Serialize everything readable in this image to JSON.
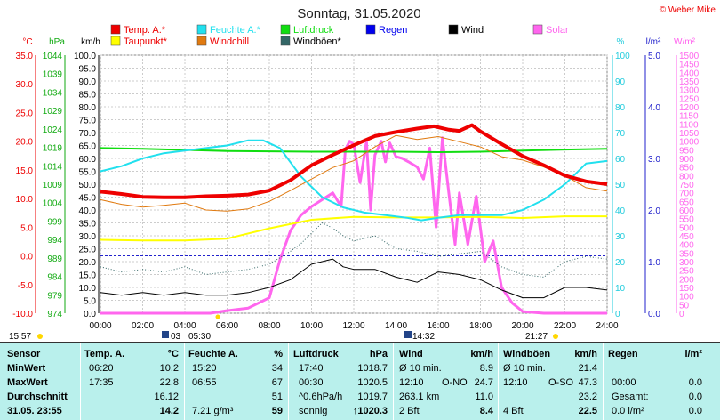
{
  "page": {
    "title": "Sonntag, 31.05.2020",
    "copyright": "© Weber Mike"
  },
  "colors": {
    "temp": "#ee0000",
    "dew": "#ffff00",
    "humidity": "#22e0ee",
    "windchill": "#e07a10",
    "pressure": "#11dd11",
    "gust": "#336666",
    "rain": "#0000ee",
    "wind": "#000000",
    "solar": "#ff66ee",
    "table_bg": "#b9f0ec"
  },
  "legend": [
    {
      "label": "Temp. A.*",
      "color": "#ee0000",
      "label_color": "#ee0000"
    },
    {
      "label": "Taupunkt*",
      "color": "#ffff00",
      "label_color": "#ee0000"
    },
    {
      "label": "Feuchte A.*",
      "color": "#22e0ee",
      "label_color": "#22e0ee"
    },
    {
      "label": "Windchill",
      "color": "#e07a10",
      "label_color": "#ee0000"
    },
    {
      "label": "Luftdruck",
      "color": "#11dd11",
      "label_color": "#11dd11"
    },
    {
      "label": "Windböen*",
      "color": "#336666",
      "label_color": "#000000"
    },
    {
      "label": "Regen",
      "color": "#0000ee",
      "label_color": "#0000ee"
    },
    {
      "label": "Wind",
      "color": "#000000",
      "label_color": "#000000"
    },
    {
      "label": "Solar",
      "color": "#ff66ee",
      "label_color": "#ff66ee"
    }
  ],
  "chart_data": {
    "type": "line",
    "xlim": [
      "00:00",
      "24:00"
    ],
    "x_ticks": [
      "00:00",
      "02:00",
      "04:00",
      "06:00",
      "08:00",
      "10:00",
      "12:00",
      "14:00",
      "16:00",
      "18:00",
      "20:00",
      "22:00",
      "24:00"
    ],
    "axes": [
      {
        "unit": "°C",
        "range": [
          -10,
          35
        ],
        "ticks": [
          "35.0",
          "30.0",
          "25.0",
          "20.0",
          "15.0",
          "10.0",
          "5.0",
          "0.0",
          "-5.0",
          "-10.0"
        ],
        "color": "#ee0000"
      },
      {
        "unit": "hPa",
        "range": [
          974,
          1044
        ],
        "ticks": [
          "1044",
          "1039",
          "1034",
          "1029",
          "1024",
          "1019",
          "1014",
          "1009",
          "1004",
          "999",
          "994",
          "989",
          "984",
          "979",
          "974"
        ],
        "color": "#11aa11"
      },
      {
        "unit": "km/h",
        "range": [
          0,
          100
        ],
        "ticks": [
          "100.0",
          "95.0",
          "90.0",
          "85.0",
          "80.0",
          "75.0",
          "70.0",
          "65.0",
          "60.0",
          "55.0",
          "50.0",
          "45.0",
          "40.0",
          "35.0",
          "30.0",
          "25.0",
          "20.0",
          "15.0",
          "10.0",
          "5.0",
          "0.0"
        ],
        "color": "#000000"
      },
      {
        "unit": "%",
        "range": [
          0,
          100
        ],
        "ticks": [
          "100",
          "90",
          "80",
          "70",
          "60",
          "50",
          "40",
          "30",
          "20",
          "10",
          "0"
        ],
        "color": "#22ccdd"
      },
      {
        "unit": "l/m²",
        "range": [
          0,
          5
        ],
        "ticks": [
          "5.0",
          "4.0",
          "3.0",
          "2.0",
          "1.0",
          "0.0"
        ],
        "color": "#2222cc"
      },
      {
        "unit": "W/m²",
        "range": [
          0,
          1500
        ],
        "ticks": [
          "1500",
          "1450",
          "1400",
          "1350",
          "1300",
          "1250",
          "1200",
          "1150",
          "1100",
          "1050",
          "1000",
          "950",
          "900",
          "850",
          "800",
          "750",
          "700",
          "650",
          "600",
          "550",
          "500",
          "450",
          "400",
          "350",
          "300",
          "250",
          "200",
          "150",
          "100",
          "50",
          "0"
        ],
        "color": "#ff66ee"
      }
    ],
    "series": [
      {
        "name": "Temp. A.*",
        "axis": "°C",
        "x": [
          0,
          1,
          2,
          3,
          4,
          5,
          6,
          7,
          8,
          9,
          10,
          11,
          12,
          13,
          14,
          15,
          15.8,
          16.5,
          17,
          17.6,
          18,
          19,
          20,
          21,
          22,
          23,
          24
        ],
        "y": [
          11.2,
          10.8,
          10.3,
          10.2,
          10.2,
          10.4,
          10.5,
          10.7,
          11.4,
          13.2,
          15.8,
          17.6,
          19.3,
          20.9,
          21.6,
          22.2,
          22.6,
          22.0,
          21.8,
          22.8,
          21.7,
          19.5,
          17.4,
          15.8,
          14.0,
          13.0,
          12.5
        ]
      },
      {
        "name": "Taupunkt*",
        "axis": "°C",
        "x": [
          0,
          2,
          4,
          6,
          8,
          10,
          12,
          14,
          16,
          18,
          20,
          22,
          24
        ],
        "y": [
          2.8,
          2.7,
          2.7,
          3.0,
          4.8,
          6.3,
          6.8,
          6.7,
          6.7,
          6.8,
          6.6,
          6.9,
          6.9
        ]
      },
      {
        "name": "Feuchte A.*",
        "axis": "%",
        "x": [
          0,
          1,
          2,
          3,
          4,
          5,
          6,
          7,
          7.7,
          8.5,
          9.5,
          10.5,
          11.5,
          12.5,
          13.5,
          14.5,
          15.2,
          16,
          17,
          18,
          19,
          20,
          21,
          22,
          23,
          24
        ],
        "y": [
          55,
          57,
          60,
          62,
          63,
          64,
          65,
          67,
          67,
          64,
          53,
          45,
          41,
          39,
          38,
          37,
          36,
          37,
          38,
          38,
          38,
          40,
          44,
          50,
          58,
          59
        ]
      },
      {
        "name": "Windchill",
        "axis": "°C",
        "x": [
          0,
          1,
          2,
          3,
          4,
          5,
          6,
          7,
          8,
          9,
          10,
          11,
          12,
          13,
          14,
          15,
          16,
          17,
          18,
          19,
          20,
          21,
          22,
          23,
          24
        ],
        "y": [
          9.8,
          9.0,
          8.5,
          8.8,
          9.2,
          8.0,
          7.8,
          8.2,
          9.5,
          11.4,
          13.4,
          15.4,
          16.6,
          19.0,
          21.0,
          20.3,
          20.8,
          19.9,
          19.0,
          17.3,
          16.7,
          15.5,
          14.0,
          11.9,
          11.3
        ]
      },
      {
        "name": "Luftdruck",
        "axis": "hPa",
        "x": [
          0,
          2,
          4,
          6,
          8,
          10,
          12,
          14,
          16,
          18,
          20,
          22,
          24
        ],
        "y": [
          1018.8,
          1018.6,
          1018.3,
          1018.0,
          1017.9,
          1017.8,
          1017.8,
          1017.8,
          1017.7,
          1017.8,
          1018.1,
          1018.4,
          1018.6
        ]
      },
      {
        "name": "Windböen*",
        "axis": "km/h",
        "x": [
          0,
          1,
          2,
          3,
          4,
          5,
          6,
          7,
          8,
          9,
          9.5,
          10,
          10.5,
          11,
          11.5,
          12,
          13,
          14,
          15,
          16,
          17,
          18,
          19,
          20,
          21,
          22,
          23,
          24
        ],
        "y": [
          18,
          16,
          17,
          16,
          18,
          15,
          16,
          17,
          19,
          24,
          27,
          31,
          35,
          33,
          30,
          28,
          30,
          25,
          24,
          22,
          23,
          24,
          18,
          15,
          14,
          20,
          22,
          21
        ]
      },
      {
        "name": "Wind",
        "axis": "km/h",
        "x": [
          0,
          1,
          2,
          3,
          4,
          5,
          6,
          7,
          8,
          9,
          9.5,
          10,
          10.5,
          11,
          11.5,
          12,
          13,
          14,
          15,
          16,
          17,
          18,
          19,
          20,
          21,
          22,
          23,
          24
        ],
        "y": [
          8,
          7,
          8,
          7,
          8,
          7,
          7,
          8,
          10,
          13,
          16,
          19,
          20,
          21,
          18,
          17,
          17,
          14,
          12,
          16,
          15,
          13,
          9,
          6,
          6,
          10,
          10,
          9
        ]
      },
      {
        "name": "Solar",
        "axis": "W/m²",
        "x": [
          0,
          5.2,
          6,
          7,
          8,
          8.5,
          9,
          9.5,
          10,
          10.5,
          11,
          11.4,
          11.6,
          11.8,
          12,
          12.3,
          12.6,
          12.8,
          13,
          13.3,
          13.5,
          13.7,
          14,
          14.3,
          14.6,
          15,
          15.3,
          15.6,
          15.9,
          16.2,
          16.5,
          16.8,
          17,
          17.4,
          17.8,
          18.2,
          18.6,
          19,
          19.5,
          20,
          21,
          24
        ],
        "y": [
          0,
          0,
          15,
          30,
          90,
          310,
          480,
          570,
          620,
          660,
          700,
          620,
          950,
          1000,
          980,
          760,
          1000,
          600,
          920,
          1000,
          880,
          990,
          910,
          900,
          880,
          850,
          780,
          960,
          500,
          1020,
          700,
          400,
          700,
          400,
          680,
          300,
          420,
          150,
          60,
          10,
          0,
          0
        ]
      }
    ]
  },
  "footer": {
    "time_left": "15:57",
    "sunrise": "05:30",
    "moon_label": "03",
    "noon": "14:32",
    "sunset": "21:27"
  },
  "table": {
    "headers": {
      "sensor": "Sensor",
      "temp": "Temp. A.",
      "temp_unit": "°C",
      "hum": "Feuchte A.",
      "hum_unit": "%",
      "press": "Luftdruck",
      "press_unit": "hPa",
      "wind": "Wind",
      "wind_unit": "km/h",
      "gust": "Windböen",
      "gust_unit": "km/h",
      "rain": "Regen",
      "rain_unit": "l/m²"
    },
    "rows": [
      {
        "label": "MinWert",
        "temp_time": "06:20",
        "temp_val": "10.2",
        "hum_time": "15:20",
        "hum_val": "34",
        "press_time": "17:40",
        "press_val": "1018.7",
        "wind_time": "Ø 10 min.",
        "wind_val": "8.9",
        "gust_time": "Ø 10 min.",
        "gust_val": "21.4",
        "rain_time": "",
        "rain_val": ""
      },
      {
        "label": "MaxWert",
        "temp_time": "17:35",
        "temp_val": "22.8",
        "hum_time": "06:55",
        "hum_val": "67",
        "press_time": "00:30",
        "press_val": "1020.5",
        "wind_time": "12:10",
        "wind_mid": "O-NO",
        "wind_val": "24.7",
        "gust_time": "12:10",
        "gust_mid": "O-SO",
        "gust_val": "47.3",
        "rain_time": "00:00",
        "rain_val": "0.0"
      },
      {
        "label": "Durchschnitt",
        "temp_time": "",
        "temp_val": "16.12",
        "hum_time": "",
        "hum_val": "51",
        "press_time": "^0.6hPa/h",
        "press_val": "1019.7",
        "wind_time": "263.1 km",
        "wind_val": "11.0",
        "gust_time": "",
        "gust_val": "23.2",
        "rain_time": "Gesamt:",
        "rain_val": "0.0"
      },
      {
        "label": "31.05. 23:55",
        "temp_time": "",
        "temp_val": "14.2",
        "hum_time": "7.21 g/m³",
        "hum_val": "59",
        "press_time": "sonnig",
        "press_val": "↑1020.3",
        "wind_time": "2 Bft",
        "wind_val": "8.4",
        "gust_time": "4 Bft",
        "gust_val": "22.5",
        "rain_time": "0.0 l/m²",
        "rain_val": "0.0"
      }
    ]
  }
}
